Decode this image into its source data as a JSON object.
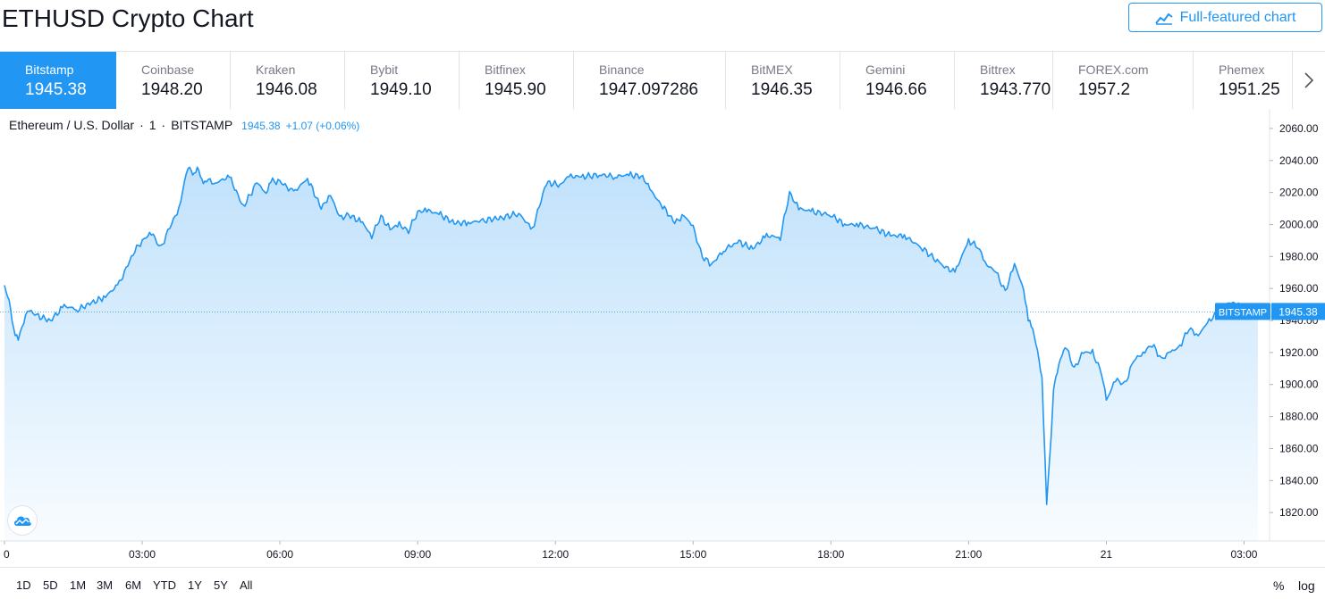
{
  "page": {
    "title": "ETHUSD Crypto Chart"
  },
  "header": {
    "full_featured_label": "Full-featured chart",
    "full_featured_icon": "chart-line-icon"
  },
  "exchanges": [
    {
      "name": "Bitstamp",
      "price": "1945.38",
      "active": true
    },
    {
      "name": "Coinbase",
      "price": "1948.20"
    },
    {
      "name": "Kraken",
      "price": "1946.08"
    },
    {
      "name": "Bybit",
      "price": "1949.10"
    },
    {
      "name": "Bitfinex",
      "price": "1945.90"
    },
    {
      "name": "Binance",
      "price": "1947.097286"
    },
    {
      "name": "BitMEX",
      "price": "1946.35"
    },
    {
      "name": "Gemini",
      "price": "1946.66"
    },
    {
      "name": "Bittrex",
      "price": "1943.770"
    },
    {
      "name": "FOREX.com",
      "price": "1957.2"
    },
    {
      "name": "Phemex",
      "price": "1951.25"
    }
  ],
  "legend": {
    "symbol": "Ethereum / U.S. Dollar",
    "interval": "1",
    "exchange": "BITSTAMP",
    "price": "1945.38",
    "change": "+1.07 (+0.06%)"
  },
  "colors": {
    "accent": "#2196f3",
    "line": "#2196f3",
    "text": "#131722",
    "muted": "#787b86"
  },
  "chart_data": {
    "type": "area",
    "title": "Ethereum / U.S. Dollar · 1 · BITSTAMP",
    "ylim": [
      1800,
      2070
    ],
    "y_ticks": [
      "2060.00",
      "2040.00",
      "2020.00",
      "2000.00",
      "1980.00",
      "1960.00",
      "1940.00",
      "1920.00",
      "1900.00",
      "1880.00",
      "1860.00",
      "1840.00",
      "1820.00"
    ],
    "x_ticks": [
      "0",
      "03:00",
      "06:00",
      "09:00",
      "12:00",
      "15:00",
      "18:00",
      "21:00",
      "21",
      "03:00"
    ],
    "x_tick_hours": [
      0,
      3,
      6,
      9,
      12,
      15,
      18,
      21,
      24,
      27
    ],
    "x_range_hours": [
      0,
      27.4
    ],
    "last_price_label": {
      "exchange": "BITSTAMP",
      "value": "1945.38",
      "y": 1945.38
    },
    "series": [
      {
        "x": [
          0,
          0.1,
          0.2,
          0.3,
          0.5,
          0.7,
          1.0,
          1.3,
          1.6,
          1.9,
          2.2,
          2.5,
          2.8,
          3.0,
          3.2,
          3.4,
          3.6,
          3.8,
          4.0,
          4.1,
          4.2,
          4.3,
          4.4,
          4.6,
          4.9,
          5.2,
          5.5,
          5.7,
          5.8,
          6.0,
          6.3,
          6.6,
          6.9,
          7.1,
          7.3,
          7.5,
          7.8,
          8.0,
          8.2,
          8.4,
          8.6,
          8.8,
          9.0,
          9.2,
          9.5,
          9.8,
          10.1,
          10.5,
          10.8,
          11.2,
          11.5,
          11.8,
          12.1,
          12.3,
          12.6,
          13.0,
          13.3,
          13.6,
          13.9,
          14.1,
          14.3,
          14.6,
          14.8,
          15.0,
          15.2,
          15.4,
          15.7,
          16.0,
          16.3,
          16.6,
          16.9,
          17.1,
          17.3,
          17.6,
          18.0,
          18.3,
          18.6,
          19.0,
          19.3,
          19.6,
          20.0,
          20.4,
          20.7,
          21.0,
          21.2,
          21.4,
          21.6,
          21.8,
          22.0,
          22.2,
          22.3,
          22.4,
          22.5,
          22.6,
          22.7,
          22.8,
          22.85,
          22.9,
          23.0,
          23.1,
          23.3,
          23.5,
          23.7,
          23.9,
          24.0,
          24.2,
          24.4,
          24.6,
          24.8,
          25.0,
          25.2,
          25.4,
          25.6,
          25.8,
          26.0,
          26.2,
          26.4,
          26.6,
          26.8,
          27.0,
          27.2,
          27.3
        ],
        "y": [
          1962,
          1952,
          1935,
          1928,
          1947,
          1943,
          1940,
          1949,
          1947,
          1951,
          1955,
          1963,
          1982,
          1990,
          1995,
          1985,
          1998,
          2010,
          2037,
          2030,
          2036,
          2027,
          2028,
          2026,
          2030,
          2011,
          2026,
          2020,
          2027,
          2027,
          2020,
          2029,
          2010,
          2019,
          2004,
          2006,
          2001,
          1993,
          2005,
          1997,
          2000,
          1996,
          2008,
          2009,
          2006,
          2001,
          2001,
          2003,
          2004,
          2007,
          1997,
          2026,
          2025,
          2030,
          2030,
          2031,
          2030,
          2031,
          2030,
          2020,
          2013,
          2001,
          2006,
          1998,
          1980,
          1975,
          1985,
          1989,
          1985,
          1993,
          1992,
          2020,
          2010,
          2008,
          2006,
          2000,
          2000,
          1997,
          1993,
          1993,
          1985,
          1975,
          1970,
          1990,
          1986,
          1975,
          1970,
          1958,
          1975,
          1960,
          1940,
          1935,
          1920,
          1905,
          1825,
          1870,
          1895,
          1905,
          1915,
          1925,
          1910,
          1920,
          1920,
          1907,
          1890,
          1903,
          1900,
          1915,
          1920,
          1925,
          1916,
          1920,
          1924,
          1935,
          1931,
          1938,
          1945,
          1950,
          1952,
          1946,
          1946,
          1945.38
        ]
      }
    ]
  },
  "periods": [
    "1D",
    "5D",
    "1M",
    "3M",
    "6M",
    "YTD",
    "1Y",
    "5Y",
    "All"
  ],
  "scale_buttons": {
    "percent": "%",
    "log": "log"
  }
}
